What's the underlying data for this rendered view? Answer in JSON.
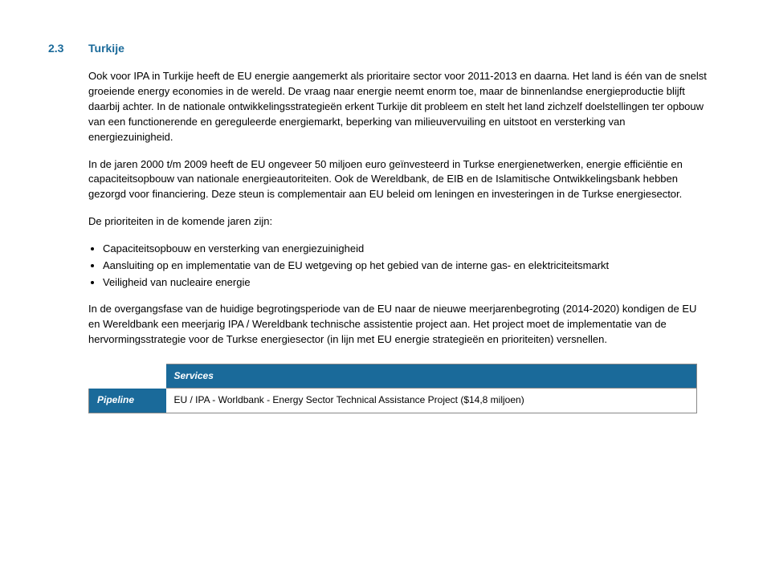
{
  "section": {
    "number": "2.3",
    "title": "Turkije"
  },
  "paragraphs": {
    "p1": "Ook voor IPA in Turkije heeft de EU energie aangemerkt als prioritaire sector voor 2011-2013 en daarna. Het land is één van de snelst groeiende energy economies in de wereld. De vraag naar energie neemt enorm toe, maar de binnenlandse energieproductie blijft daarbij achter. In de nationale ontwikkelingsstrategieën erkent Turkije dit probleem en stelt het land zichzelf doelstellingen ter opbouw van een functionerende en gereguleerde energiemarkt, beperking van milieuvervuiling en uitstoot en versterking van energiezuinigheid.",
    "p2": "In de jaren  2000 t/m 2009 heeft de EU ongeveer 50 miljoen euro geïnvesteerd in Turkse energienetwerken, energie efficiëntie en capaciteitsopbouw van nationale energieautoriteiten. Ook de Wereldbank, de EIB en de Islamitische Ontwikkelingsbank hebben gezorgd voor financiering. Deze steun is complementair aan EU beleid om leningen en investeringen in de Turkse energiesector.",
    "p3": "De prioriteiten in de komende jaren zijn:",
    "p4": "In de overgangsfase van de huidige begrotingsperiode van de EU naar de nieuwe meerjarenbegroting (2014-2020) kondigen de EU en Wereldbank een meerjarig IPA / Wereldbank technische assistentie project aan. Het project moet de implementatie van de hervormingsstrategie voor de Turkse energiesector (in lijn met EU energie strategieën en prioriteiten) versnellen."
  },
  "bullets": {
    "b1": "Capaciteitsopbouw en versterking van energiezuinigheid",
    "b2": "Aansluiting op en implementatie van de EU wetgeving op het gebied van de interne gas- en elektriciteitsmarkt",
    "b3": "Veiligheid van nucleaire energie"
  },
  "table": {
    "servicesHeader": "Services",
    "pipelineLabel": "Pipeline",
    "pipelineText": "EU / IPA - Worldbank - Energy Sector Technical Assistance Project ($14,8 miljoen)"
  },
  "colors": {
    "accent": "#1a6a9a",
    "text": "#000000",
    "background": "#ffffff",
    "tableBorder": "#888888"
  }
}
